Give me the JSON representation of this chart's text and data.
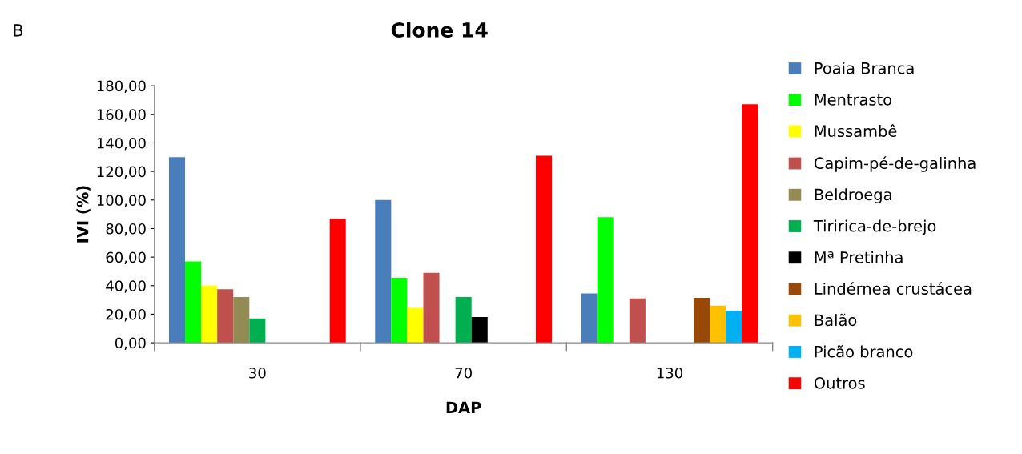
{
  "chart_data": {
    "type": "bar",
    "title": "Clone 14",
    "xlabel": "DAP",
    "ylabel": "IVI (%)",
    "annotations": [
      "B"
    ],
    "categories": [
      "30",
      "70",
      "130"
    ],
    "series": [
      {
        "name": "Poaia Branca",
        "color": "#4a7ebb",
        "values": [
          130,
          100,
          34.5
        ]
      },
      {
        "name": "Mentrasto",
        "color": "#00ff00",
        "values": [
          57,
          45.5,
          88
        ]
      },
      {
        "name": "Mussambê",
        "color": "#ffff00",
        "values": [
          40,
          24.5,
          0
        ]
      },
      {
        "name": "Capim-pé-de-galinha",
        "color": "#c0504d",
        "values": [
          37.5,
          49,
          31
        ]
      },
      {
        "name": "Beldroega",
        "color": "#948a54",
        "values": [
          32,
          0,
          0
        ]
      },
      {
        "name": "Tiririca-de-brejo",
        "color": "#00b050",
        "values": [
          17,
          32,
          0
        ]
      },
      {
        "name": "Mª Pretinha",
        "color": "#000000",
        "values": [
          0,
          18,
          0
        ]
      },
      {
        "name": "Lindérnea crustácea",
        "color": "#984807",
        "values": [
          0,
          0,
          31.5
        ]
      },
      {
        "name": "Balão",
        "color": "#ffc000",
        "values": [
          0,
          0,
          26
        ]
      },
      {
        "name": "Picão branco",
        "color": "#00b0f0",
        "values": [
          0,
          0,
          22.5
        ]
      },
      {
        "name": "Outros",
        "color": "#ff0000",
        "values": [
          87,
          131,
          167
        ]
      }
    ],
    "ylim": [
      0,
      180
    ],
    "yticks": [
      {
        "value": 0,
        "label": "0,00"
      },
      {
        "value": 20,
        "label": "20,00"
      },
      {
        "value": 40,
        "label": "40,00"
      },
      {
        "value": 60,
        "label": "60,00"
      },
      {
        "value": 80,
        "label": "80,00"
      },
      {
        "value": 100,
        "label": "100,00"
      },
      {
        "value": 120,
        "label": "120,00"
      },
      {
        "value": 140,
        "label": "140,00"
      },
      {
        "value": 160,
        "label": "160,00"
      },
      {
        "value": 180,
        "label": "180,00"
      }
    ],
    "grid": false,
    "legend": "right"
  }
}
